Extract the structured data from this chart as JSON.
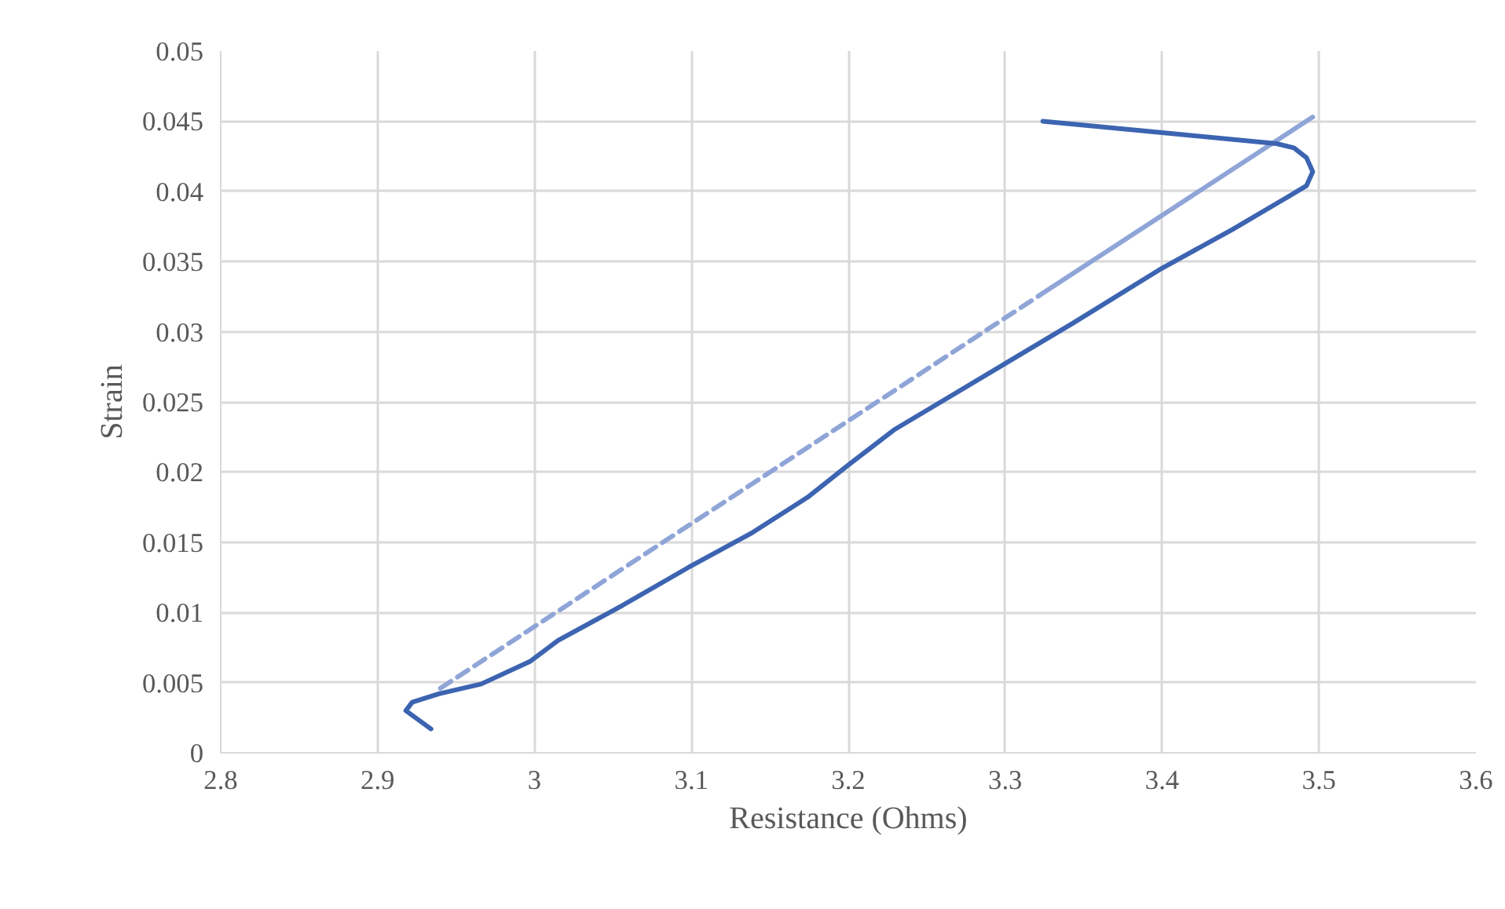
{
  "chart_data": {
    "type": "line",
    "xlabel": "Resistance (Ohms)",
    "ylabel": "Strain",
    "xlim": [
      2.8,
      3.6
    ],
    "xticks": [
      2.8,
      2.9,
      3,
      3.1,
      3.2,
      3.3,
      3.4,
      3.5,
      3.6
    ],
    "ylim": [
      0,
      0.05
    ],
    "yticks": [
      0,
      0.005,
      0.01,
      0.015,
      0.02,
      0.025,
      0.03,
      0.035,
      0.04,
      0.045,
      0.05
    ],
    "grid": true,
    "series": [
      {
        "color": "#3c64b1",
        "line_style": "solid",
        "x": [
          2.934,
          2.918,
          2.922,
          2.939,
          2.966,
          2.997,
          3.015,
          3.056,
          3.098,
          3.139,
          3.174,
          3.2,
          3.229,
          3.259,
          3.301,
          3.343,
          3.398,
          3.445,
          3.477,
          3.492,
          3.496,
          3.492,
          3.484,
          3.473,
          3.408,
          3.324
        ],
        "values": [
          0.0017,
          0.003,
          0.0036,
          0.0042,
          0.0049,
          0.0065,
          0.008,
          0.0105,
          0.0132,
          0.0157,
          0.0182,
          0.0205,
          0.023,
          0.025,
          0.0278,
          0.0306,
          0.0344,
          0.0373,
          0.0394,
          0.0404,
          0.0414,
          0.0424,
          0.0431,
          0.0434,
          0.0441,
          0.045
        ]
      },
      {
        "type": "line",
        "color": "#8fa5d8",
        "line_style": "dashed",
        "x": [
          2.94,
          3.322
        ],
        "values": [
          0.0046,
          0.0326
        ]
      },
      {
        "type": "line",
        "color": "#8fa5d8",
        "line_style": "solid",
        "x": [
          3.322,
          3.496
        ],
        "values": [
          0.0326,
          0.0453
        ]
      }
    ]
  }
}
